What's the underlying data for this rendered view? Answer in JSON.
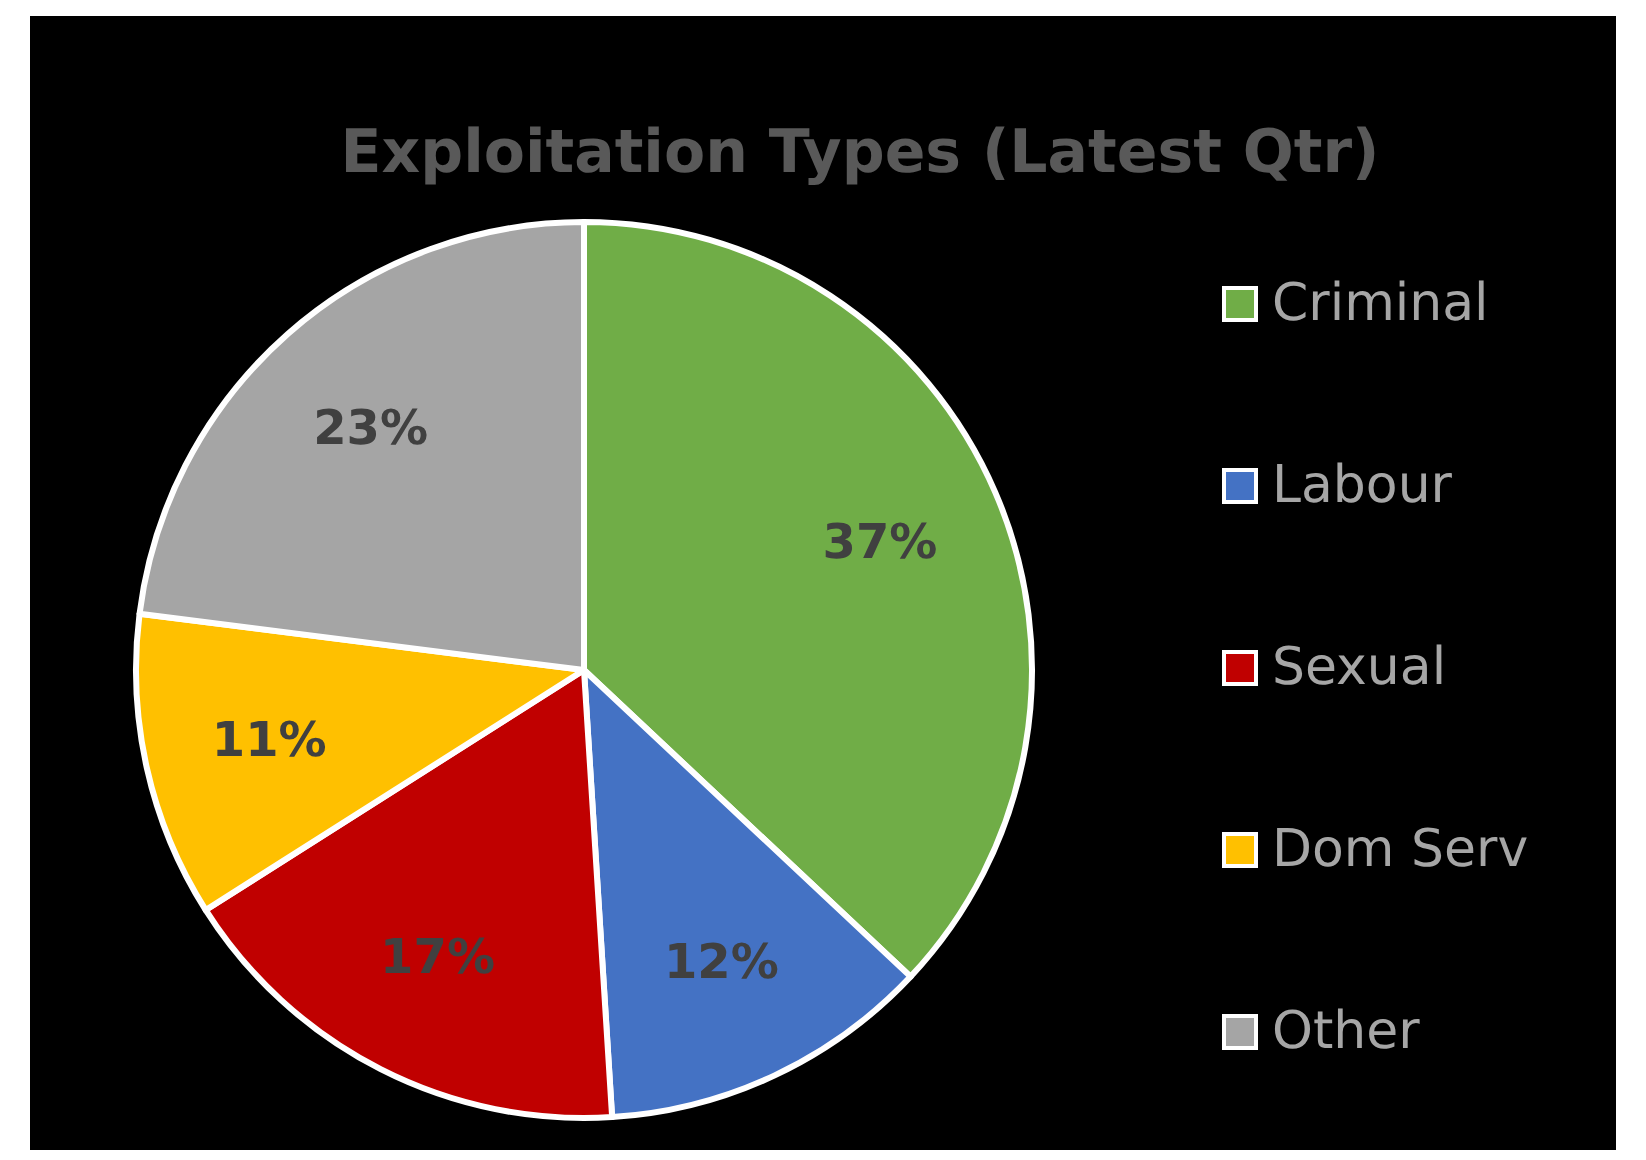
{
  "chart_data": {
    "type": "pie",
    "title": "Exploitation Types (Latest Qtr)",
    "categories": [
      "Criminal",
      "Labour",
      "Sexual",
      "Dom Serv",
      "Other"
    ],
    "values": [
      37,
      12,
      17,
      11,
      23
    ],
    "colors": [
      "#70ad47",
      "#4472c4",
      "#c00000",
      "#ffc000",
      "#a5a5a5"
    ],
    "value_labels": [
      "37%",
      "12%",
      "17%",
      "11%",
      "23%"
    ],
    "legend": "right"
  }
}
